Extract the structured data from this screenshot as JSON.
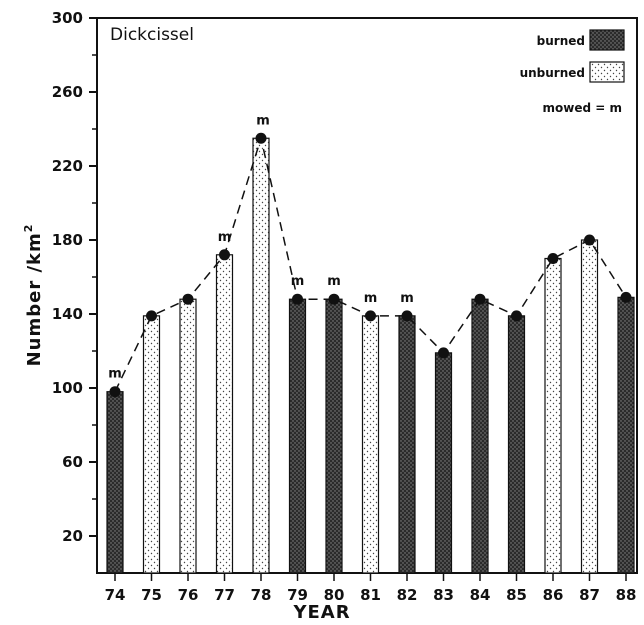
{
  "chart_data": {
    "type": "bar",
    "title": "Dickcissel",
    "xlabel": "YEAR",
    "ylabel": "Number /km",
    "ylabel_superscript": "2",
    "ylim": [
      0,
      300
    ],
    "yticks": [
      20,
      60,
      100,
      140,
      180,
      220,
      260,
      300
    ],
    "categories": [
      "74",
      "75",
      "76",
      "77",
      "78",
      "79",
      "80",
      "81",
      "82",
      "83",
      "84",
      "85",
      "86",
      "87",
      "88"
    ],
    "values": [
      98,
      139,
      148,
      172,
      235,
      148,
      148,
      139,
      139,
      119,
      148,
      139,
      170,
      180,
      149
    ],
    "treatment": [
      "burned",
      "unburned",
      "unburned",
      "unburned",
      "unburned",
      "burned",
      "burned",
      "unburned",
      "burned",
      "burned",
      "burned",
      "burned",
      "unburned",
      "unburned",
      "burned"
    ],
    "mowed": [
      true,
      false,
      false,
      true,
      true,
      true,
      true,
      true,
      true,
      false,
      false,
      false,
      false,
      false,
      false
    ],
    "connect_line": "dashed",
    "legend": {
      "placement": "top-right",
      "entries": [
        {
          "label": "burned",
          "pattern": "burned"
        },
        {
          "label": "unburned",
          "pattern": "unburned"
        }
      ],
      "mowed_note": "mowed = m"
    },
    "mowed_marker": "m",
    "grid": false
  }
}
